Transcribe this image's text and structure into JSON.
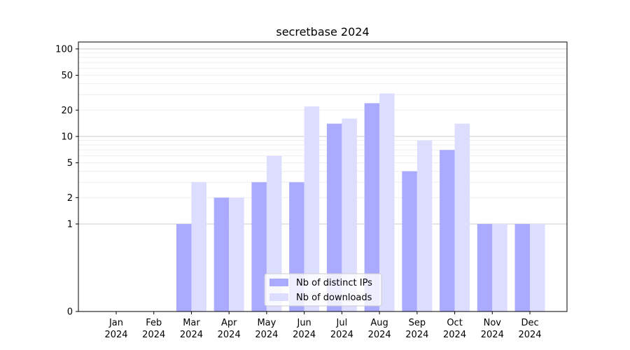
{
  "chart_data": {
    "type": "bar",
    "title": "secretbase 2024",
    "xlabel": "",
    "ylabel": "",
    "y_scale": "symlog",
    "ylim": [
      0,
      120
    ],
    "y_ticks": [
      0,
      1,
      2,
      5,
      10,
      20,
      50,
      100
    ],
    "grid": "horizontal",
    "legend_position": "lower-center",
    "categories": [
      "Jan",
      "Feb",
      "Mar",
      "Apr",
      "May",
      "Jun",
      "Jul",
      "Aug",
      "Sep",
      "Oct",
      "Nov",
      "Dec"
    ],
    "category_year": "2024",
    "series": [
      {
        "name": "Nb of distinct IPs",
        "color": "#aaaaff",
        "values": [
          0,
          0,
          1,
          2,
          3,
          3,
          14,
          24,
          4,
          7,
          1,
          1
        ]
      },
      {
        "name": "Nb of downloads",
        "color": "#ddddff",
        "values": [
          0,
          0,
          3,
          2,
          6,
          22,
          16,
          31,
          9,
          14,
          1,
          1
        ]
      }
    ]
  }
}
